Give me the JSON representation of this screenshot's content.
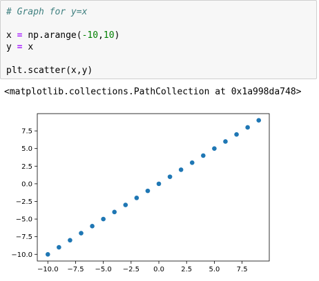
{
  "code": {
    "comment": "# Graph for y=x",
    "line_x": {
      "lhs": "x",
      "op": "=",
      "pre": "np.arange(",
      "a": "-10",
      "sep": ",",
      "b": "10",
      "post": ")"
    },
    "line_y": {
      "lhs": "y",
      "op": "=",
      "rhs": "x"
    },
    "line_scatter": "plt.scatter(x,y)"
  },
  "output": {
    "repr": "<matplotlib.collections.PathCollection at 0x1a998da748>"
  },
  "chart_data": {
    "type": "scatter",
    "x": [
      -10,
      -9,
      -8,
      -7,
      -6,
      -5,
      -4,
      -3,
      -2,
      -1,
      0,
      1,
      2,
      3,
      4,
      5,
      6,
      7,
      8,
      9
    ],
    "y": [
      -10,
      -9,
      -8,
      -7,
      -6,
      -5,
      -4,
      -3,
      -2,
      -1,
      0,
      1,
      2,
      3,
      4,
      5,
      6,
      7,
      8,
      9
    ],
    "xlim": [
      -10.95,
      9.95
    ],
    "ylim": [
      -10.95,
      9.95
    ],
    "xticks": [
      -10.0,
      -7.5,
      -5.0,
      -2.5,
      0.0,
      2.5,
      5.0,
      7.5
    ],
    "yticks": [
      -10.0,
      -7.5,
      -5.0,
      -2.5,
      0.0,
      2.5,
      5.0,
      7.5
    ],
    "xtick_labels": [
      "−10.0",
      "−7.5",
      "−5.0",
      "−2.5",
      "0.0",
      "2.5",
      "5.0",
      "7.5"
    ],
    "ytick_labels": [
      "−10.0",
      "−7.5",
      "−5.0",
      "−2.5",
      "0.0",
      "2.5",
      "5.0",
      "7.5"
    ],
    "marker_color": "#1f77b4",
    "grid": false
  }
}
